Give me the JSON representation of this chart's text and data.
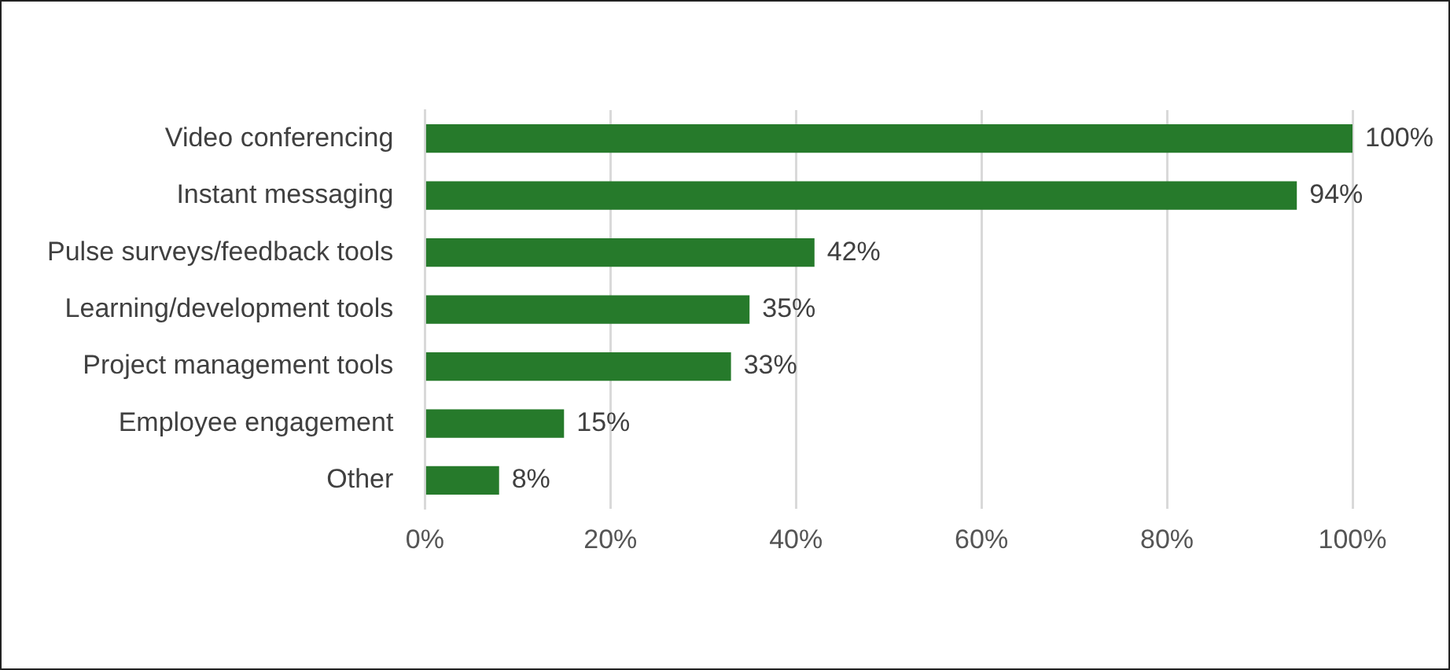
{
  "chart_data": {
    "type": "bar",
    "orientation": "horizontal",
    "categories": [
      "Video conferencing",
      "Instant messaging",
      "Pulse surveys/feedback tools",
      "Learning/development tools",
      "Project management tools",
      "Employee engagement",
      "Other"
    ],
    "values": [
      100,
      94,
      42,
      35,
      33,
      15,
      8
    ],
    "value_labels": [
      "100%",
      "94%",
      "42%",
      "35%",
      "33%",
      "15%",
      "8%"
    ],
    "color": "#267a2b",
    "xlim": [
      0,
      100
    ],
    "xticks": [
      {
        "value": 0,
        "label": "0%"
      },
      {
        "value": 20,
        "label": "20%"
      },
      {
        "value": 40,
        "label": "40%"
      },
      {
        "value": 60,
        "label": "60%"
      },
      {
        "value": 80,
        "label": "80%"
      },
      {
        "value": 100,
        "label": "100%"
      }
    ],
    "grid": "x"
  }
}
